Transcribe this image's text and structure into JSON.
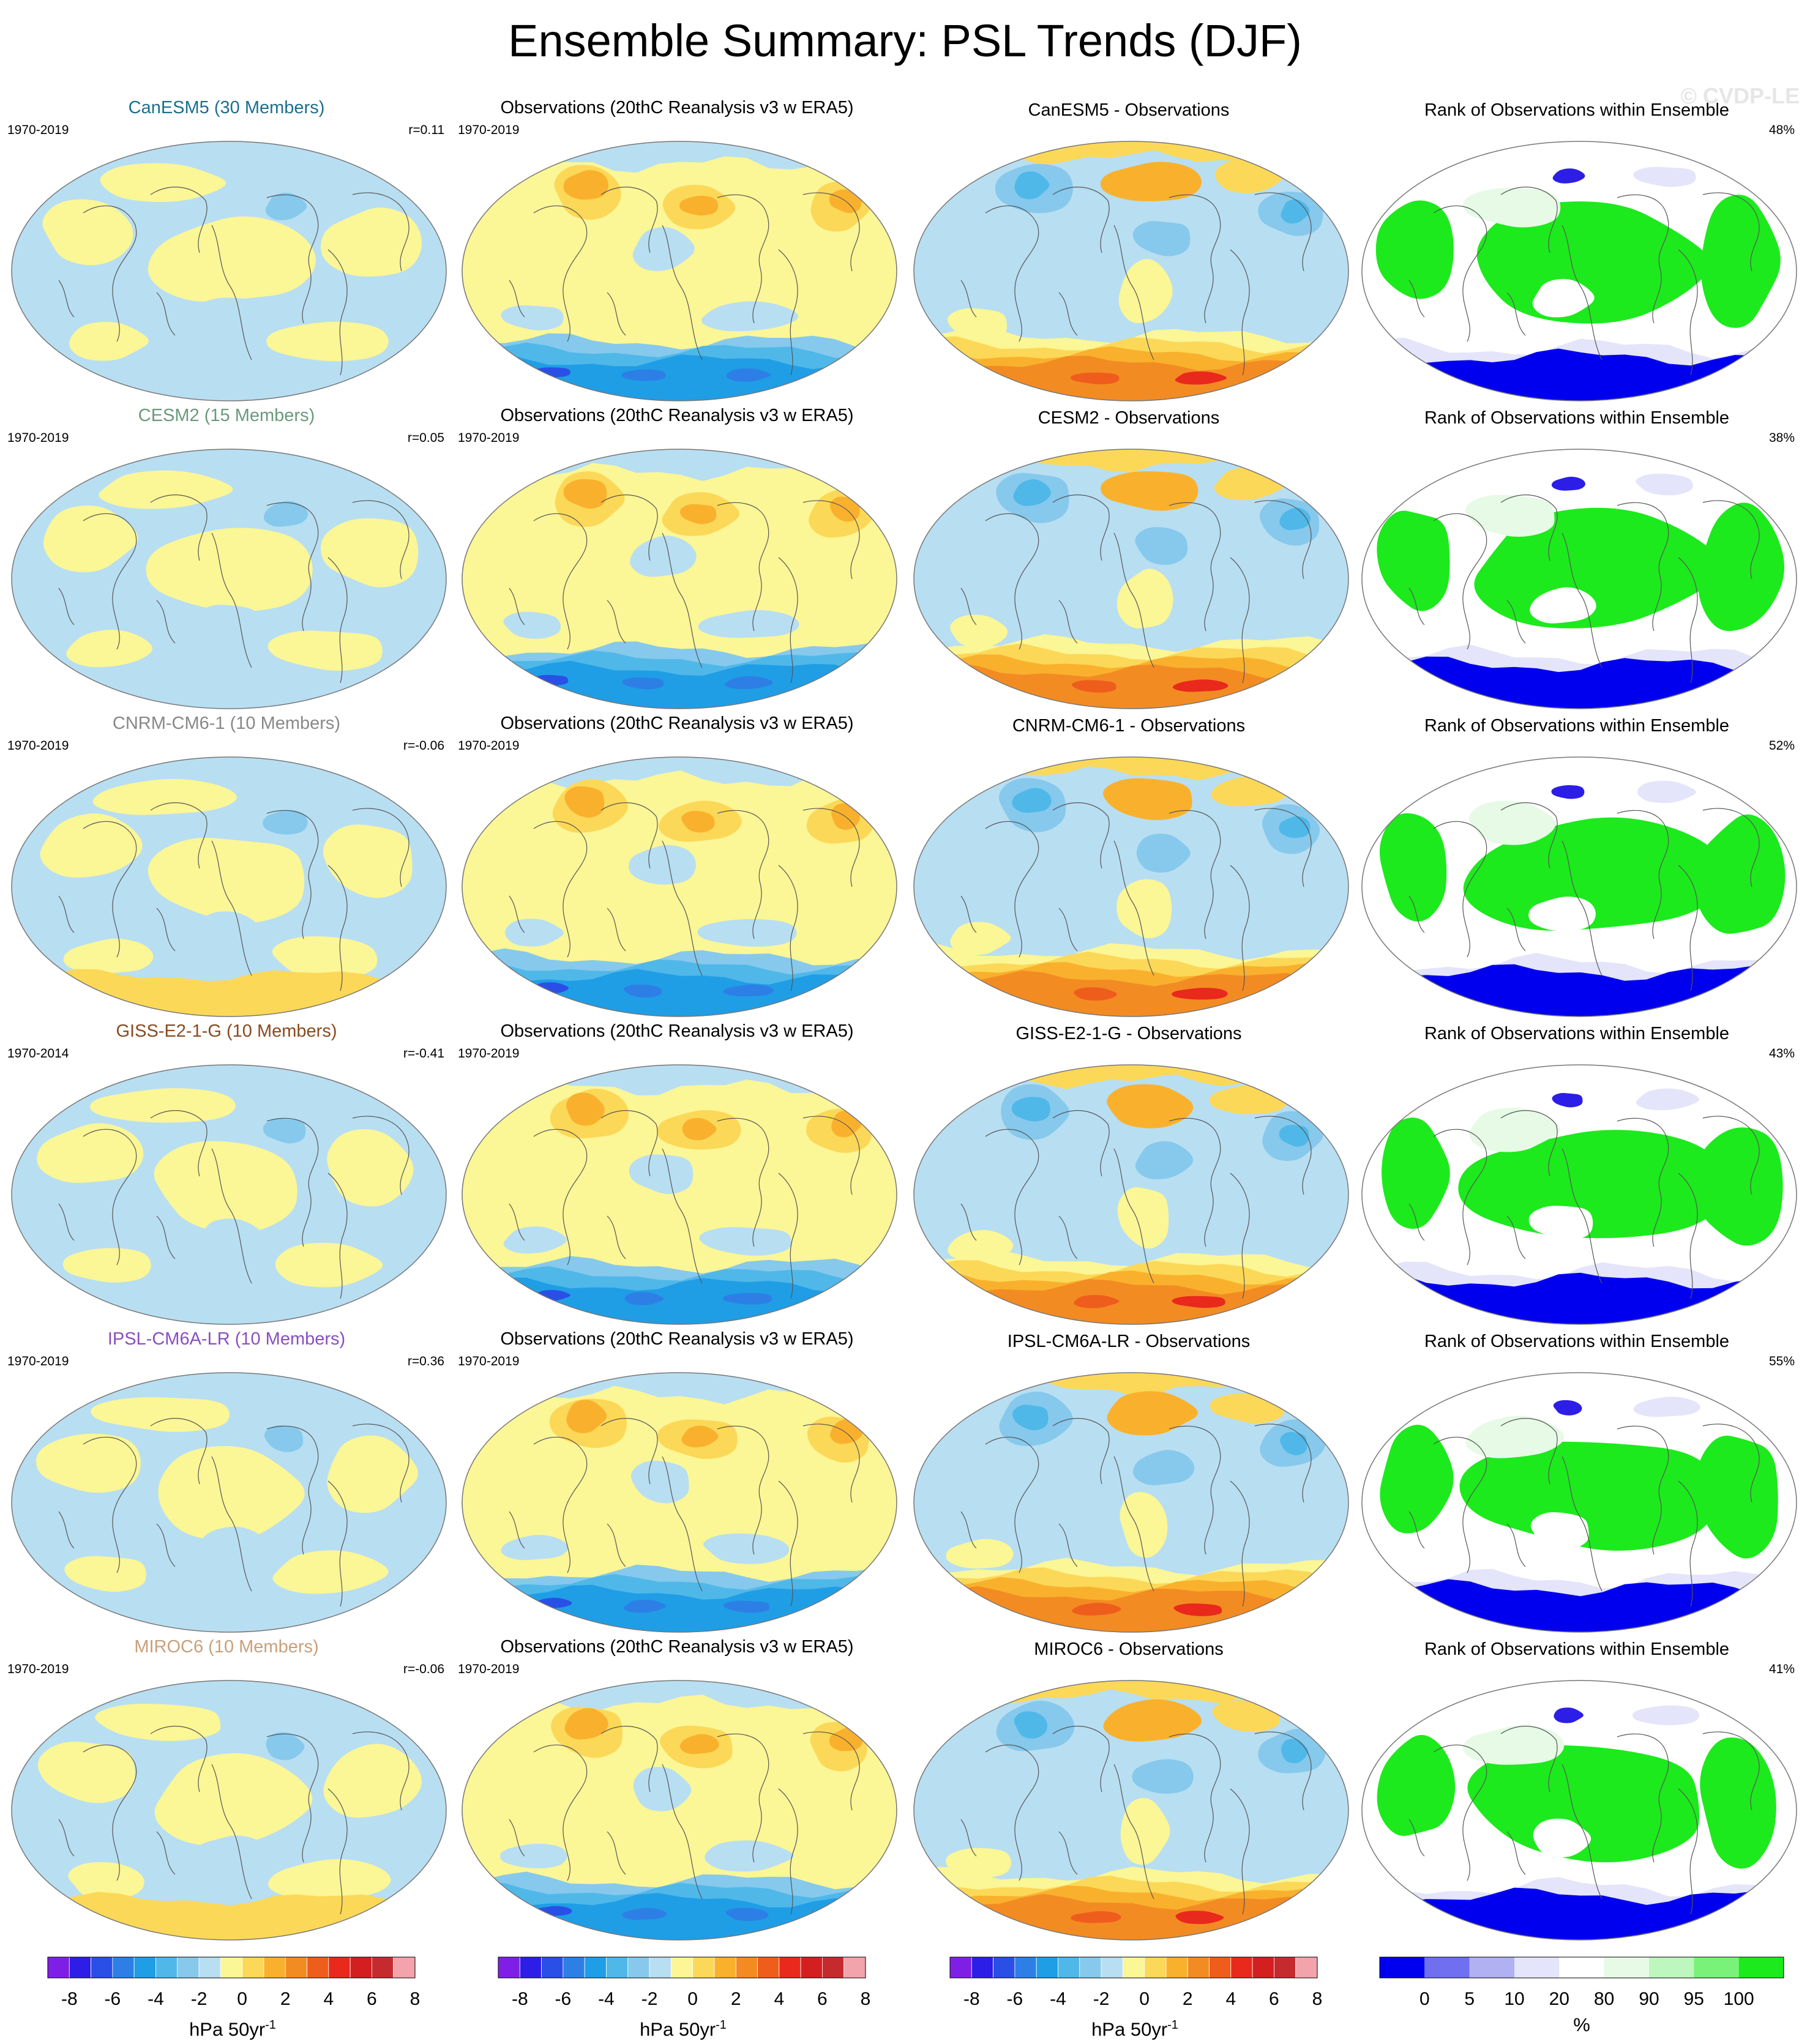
{
  "title": "Ensemble Summary: PSL Trends (DJF)",
  "watermark": "© CVDP-LE",
  "columns": {
    "observations_title": "Observations (20thC Reanalysis v3 w ERA5)",
    "observations_period": "1970-2019",
    "rank_title": "Rank of Observations within Ensemble"
  },
  "rows": [
    {
      "model_title": "CanESM5 (30 Members)",
      "model_color": "#1b6f8f",
      "period": "1970-2019",
      "r": "r=0.11",
      "diff_title": "CanESM5 - Observations",
      "rank_pct": "48%"
    },
    {
      "model_title": "CESM2 (15 Members)",
      "model_color": "#6a9a7a",
      "period": "1970-2019",
      "r": "r=0.05",
      "diff_title": "CESM2 - Observations",
      "rank_pct": "38%"
    },
    {
      "model_title": "CNRM-CM6-1 (10 Members)",
      "model_color": "#888888",
      "period": "1970-2019",
      "r": "r=-0.06",
      "diff_title": "CNRM-CM6-1 - Observations",
      "rank_pct": "52%"
    },
    {
      "model_title": "GISS-E2-1-G (10 Members)",
      "model_color": "#8a4a1f",
      "period": "1970-2014",
      "r": "r=-0.41",
      "diff_title": "GISS-E2-1-G - Observations",
      "rank_pct": "43%"
    },
    {
      "model_title": "IPSL-CM6A-LR (10 Members)",
      "model_color": "#8a4fc0",
      "period": "1970-2019",
      "r": "r=0.36",
      "diff_title": "IPSL-CM6A-LR - Observations",
      "rank_pct": "55%"
    },
    {
      "model_title": "MIROC6 (10 Members)",
      "model_color": "#c9a07a",
      "period": "1970-2019",
      "r": "r=-0.06",
      "diff_title": "MIROC6 - Observations",
      "rank_pct": "41%"
    }
  ],
  "colorbars": {
    "trend": {
      "colors": [
        "#7f1fe6",
        "#2c1ee6",
        "#2a4fe6",
        "#2d7fe6",
        "#1f9ee6",
        "#4fb8e9",
        "#86c9ec",
        "#b8def2",
        "#fbf696",
        "#fcd858",
        "#f9b12d",
        "#f38b23",
        "#ef5d1d",
        "#e8291c",
        "#d31f20",
        "#c52b2e",
        "#f3a3ab"
      ],
      "ticks": [
        "-8",
        "-6",
        "-4",
        "-2",
        "0",
        "2",
        "4",
        "6",
        "8"
      ],
      "units": "hPa 50yr",
      "units_sup": "-1"
    },
    "rank": {
      "colors": [
        "#0000ee",
        "#6f6fef",
        "#b0b0f2",
        "#e4e4fa",
        "#ffffff",
        "#e6fae6",
        "#bdf7bd",
        "#7af27a",
        "#1cea1c"
      ],
      "ticks": [
        "0",
        "5",
        "10",
        "20",
        "80",
        "90",
        "95",
        "100"
      ],
      "units": "%"
    }
  },
  "chart_data": {
    "type": "map-panel-grid",
    "title": "Ensemble Summary: PSL Trends (DJF)",
    "panel_columns": [
      "model ensemble mean",
      "observations",
      "model - observations",
      "rank of observations within ensemble"
    ],
    "models": [
      "CanESM5",
      "CESM2",
      "CNRM-CM6-1",
      "GISS-E2-1-G",
      "IPSL-CM6A-LR",
      "MIROC6"
    ],
    "members": [
      30,
      15,
      10,
      10,
      10,
      10
    ],
    "pattern_correlation": [
      0.11,
      0.05,
      -0.06,
      -0.41,
      0.36,
      -0.06
    ],
    "rank_percent": [
      48,
      38,
      52,
      43,
      55,
      41
    ],
    "trend_colorbar_ticks": [
      -8,
      -6,
      -4,
      -2,
      0,
      2,
      4,
      6,
      8
    ],
    "rank_colorbar_ticks": [
      0,
      5,
      10,
      20,
      80,
      90,
      95,
      100
    ]
  }
}
